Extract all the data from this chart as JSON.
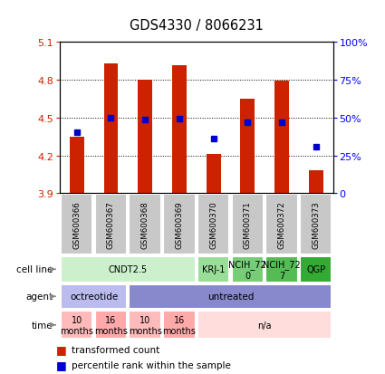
{
  "title": "GDS4330 / 8066231",
  "samples": [
    "GSM600366",
    "GSM600367",
    "GSM600368",
    "GSM600369",
    "GSM600370",
    "GSM600371",
    "GSM600372",
    "GSM600373"
  ],
  "bar_values": [
    4.35,
    4.93,
    4.8,
    4.91,
    4.21,
    4.65,
    4.79,
    4.08
  ],
  "bar_bottom": 3.9,
  "percentile_values": [
    4.38,
    4.5,
    4.48,
    4.49,
    4.33,
    4.46,
    4.46,
    4.27
  ],
  "ylim": [
    3.9,
    5.1
  ],
  "yticks_left": [
    3.9,
    4.2,
    4.5,
    4.8,
    5.1
  ],
  "yticks_right": [
    0,
    25,
    50,
    75,
    100
  ],
  "bar_color": "#cc2200",
  "percentile_color": "#0000cc",
  "cell_lines": [
    {
      "label": "CNDT2.5",
      "span": [
        0,
        4
      ],
      "color": "#ccf0cc"
    },
    {
      "label": "KRJ-1",
      "span": [
        4,
        5
      ],
      "color": "#99dd99"
    },
    {
      "label": "NCIH_72\n0",
      "span": [
        5,
        6
      ],
      "color": "#77cc77"
    },
    {
      "label": "NCIH_72\n7",
      "span": [
        6,
        7
      ],
      "color": "#55bb55"
    },
    {
      "label": "QGP",
      "span": [
        7,
        8
      ],
      "color": "#33aa33"
    }
  ],
  "agents": [
    {
      "label": "octreotide",
      "span": [
        0,
        2
      ],
      "color": "#bbbbee"
    },
    {
      "label": "untreated",
      "span": [
        2,
        8
      ],
      "color": "#8888cc"
    }
  ],
  "times": [
    {
      "label": "10\nmonths",
      "span": [
        0,
        1
      ],
      "color": "#ffbbbb"
    },
    {
      "label": "16\nmonths",
      "span": [
        1,
        2
      ],
      "color": "#ffaaaa"
    },
    {
      "label": "10\nmonths",
      "span": [
        2,
        3
      ],
      "color": "#ffbbbb"
    },
    {
      "label": "16\nmonths",
      "span": [
        3,
        4
      ],
      "color": "#ffaaaa"
    },
    {
      "label": "n/a",
      "span": [
        4,
        8
      ],
      "color": "#ffdddd"
    }
  ],
  "legend_bar_label": "transformed count",
  "legend_pct_label": "percentile rank within the sample",
  "sample_box_color": "#c8c8c8",
  "grid_yticks": [
    4.2,
    4.5,
    4.8
  ]
}
